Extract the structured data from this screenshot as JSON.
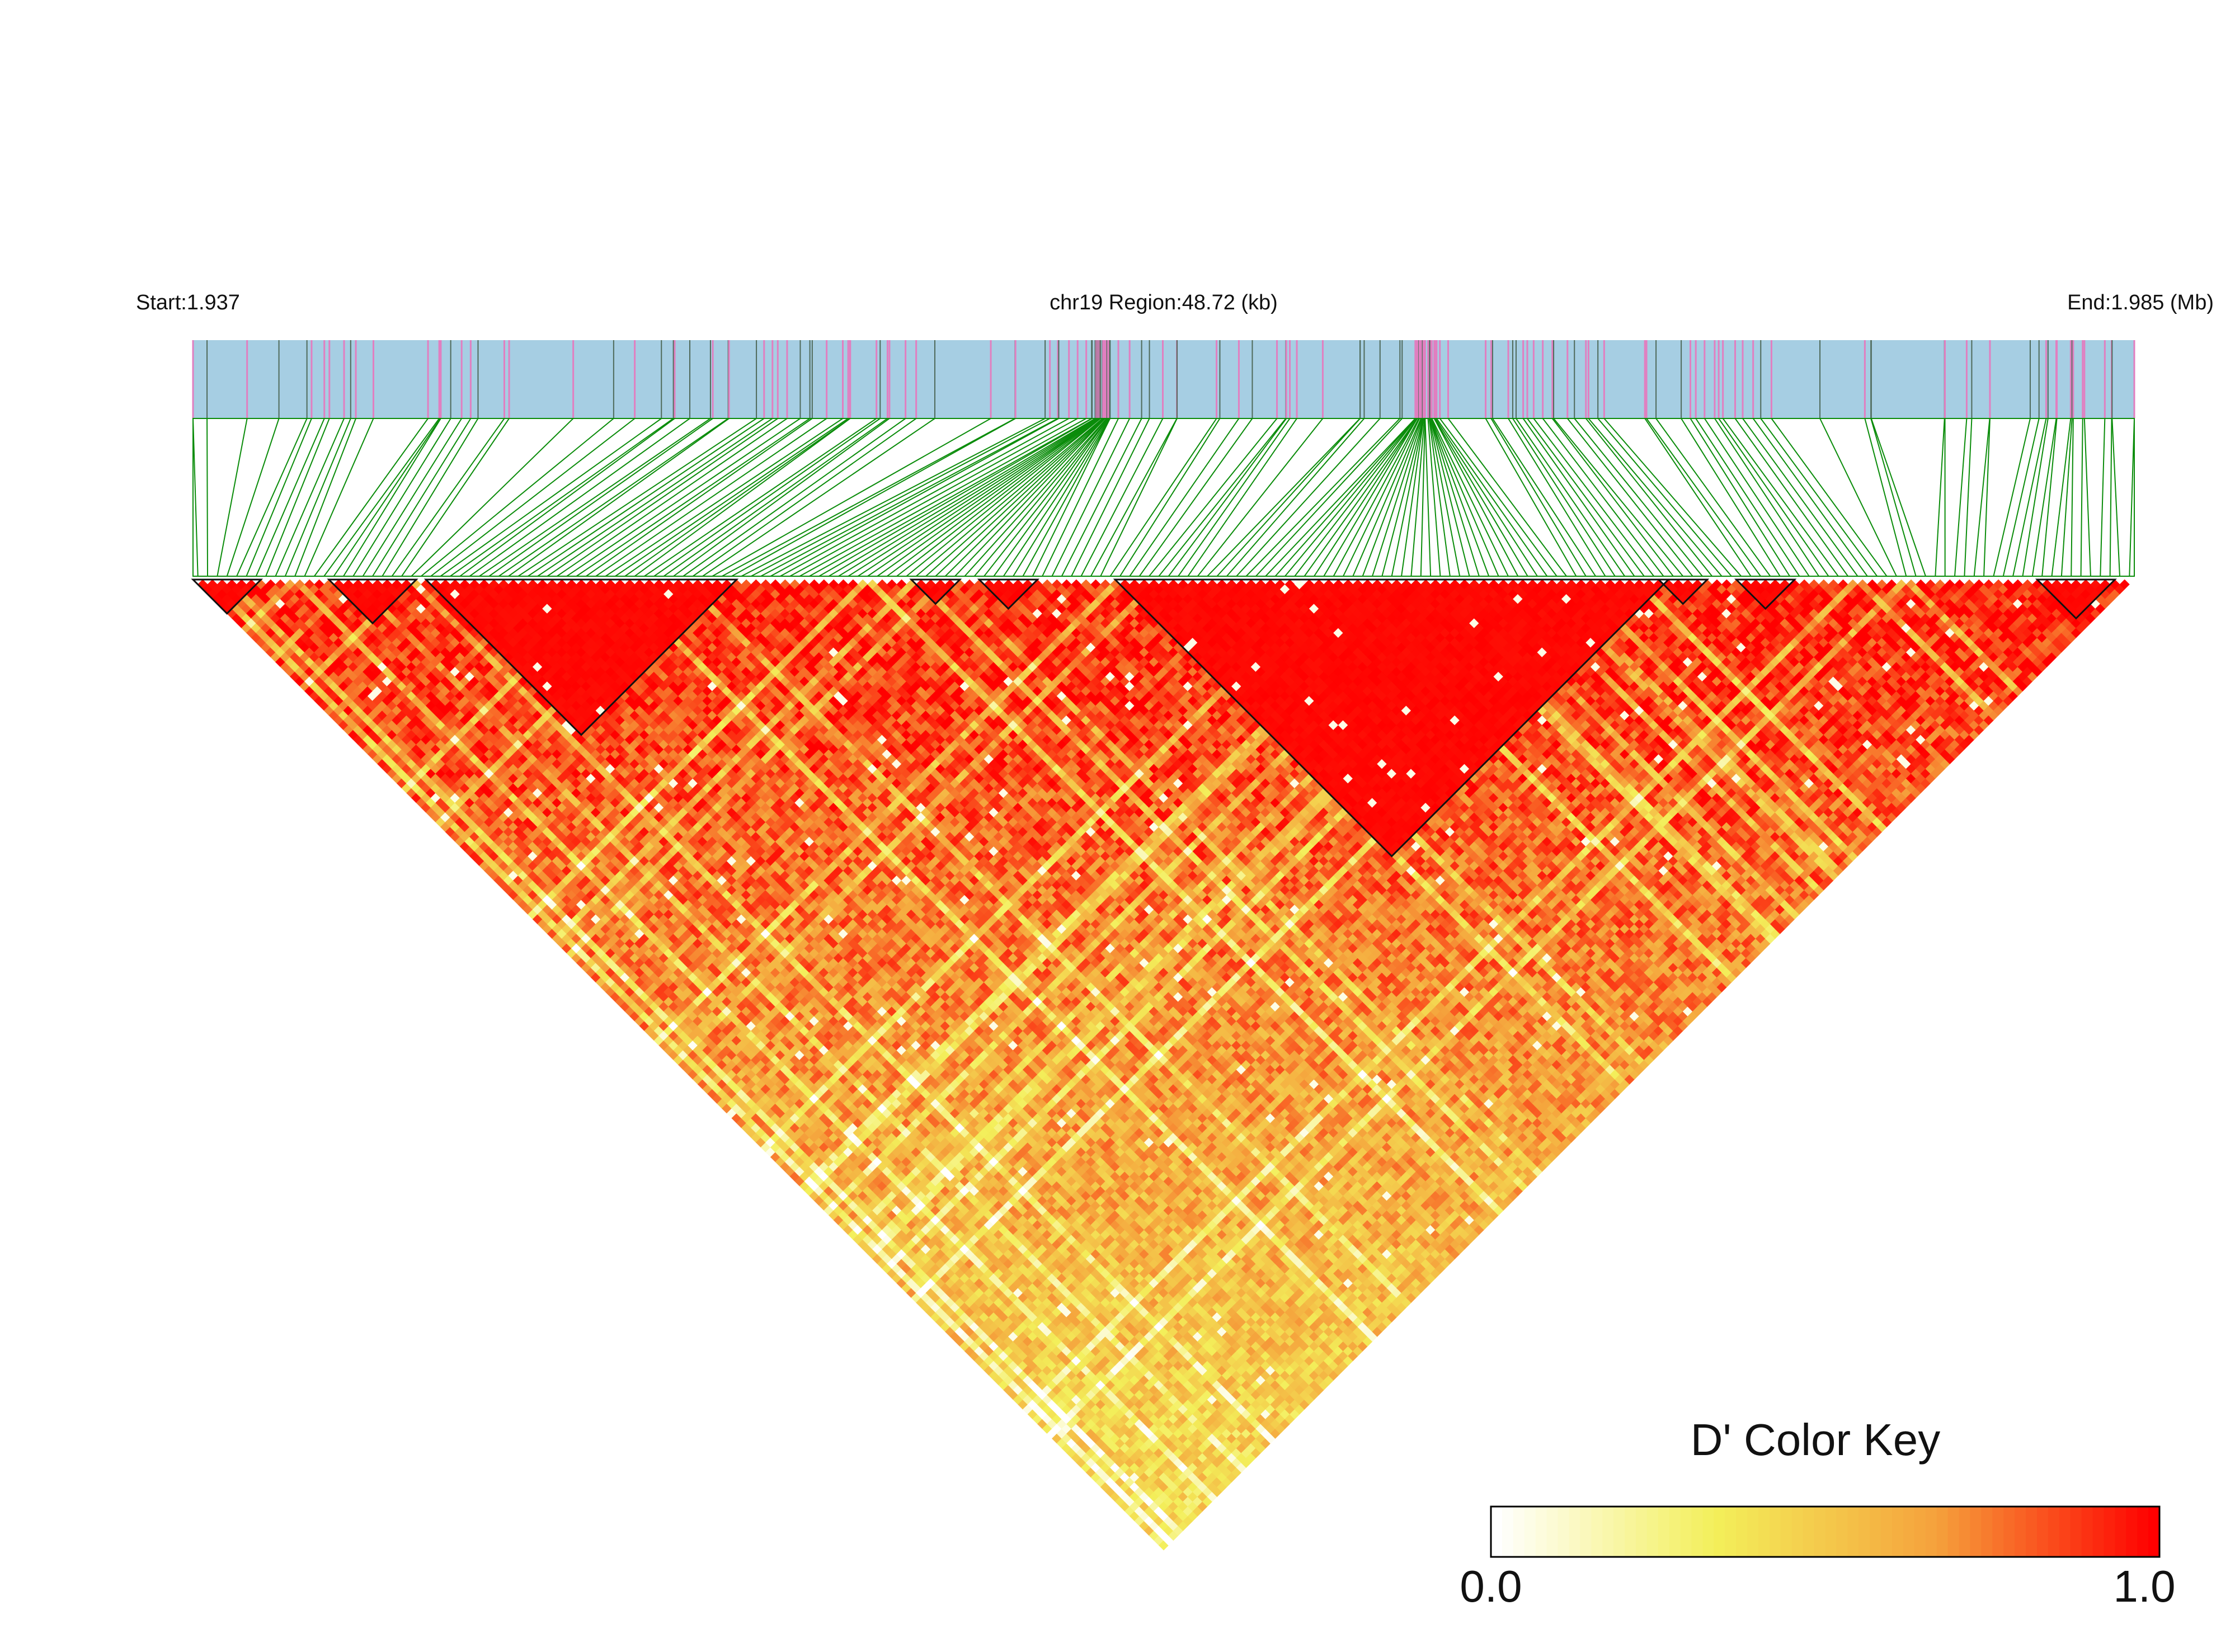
{
  "chart_data": {
    "type": "heatmap",
    "subtype": "LD triangle heatmap (LDheatmap style)",
    "metric": "D'",
    "chromosome": "chr19",
    "header": {
      "start_label": "Start:1.937",
      "region_label": "chr19 Region:48.72 (kb)",
      "end_label": "End:1.985 (Mb)"
    },
    "region": {
      "start_mb": 1.937,
      "end_mb": 1.985,
      "length_kb": 48.72
    },
    "n_snps_approx": 200,
    "dense_snp_clusters_mb": [
      1.9595,
      1.9675
    ],
    "color_key": {
      "title": "D' Color Key",
      "min_label": "0.0",
      "max_label": "1.0",
      "range": [
        0,
        1
      ],
      "colors": [
        "#ffffff",
        "#f3ef5a",
        "#f5a23c",
        "#ff0000"
      ]
    },
    "colors": {
      "track_fill": "#a6cee3",
      "snp_tick_pink": "#e17fc0",
      "snp_tick_gray": "#4f6a5a",
      "connector_lines": "#0a8c0a",
      "high_ld": "#ff0000",
      "mid_ld": "#f3ef5a"
    },
    "blocks_snp_index_ranges": [
      [
        0,
        6
      ],
      [
        14,
        22
      ],
      [
        24,
        55
      ],
      [
        74,
        78
      ],
      [
        81,
        86
      ],
      [
        95,
        151
      ],
      [
        151,
        155
      ],
      [
        159,
        164
      ],
      [
        190,
        197
      ]
    ]
  }
}
